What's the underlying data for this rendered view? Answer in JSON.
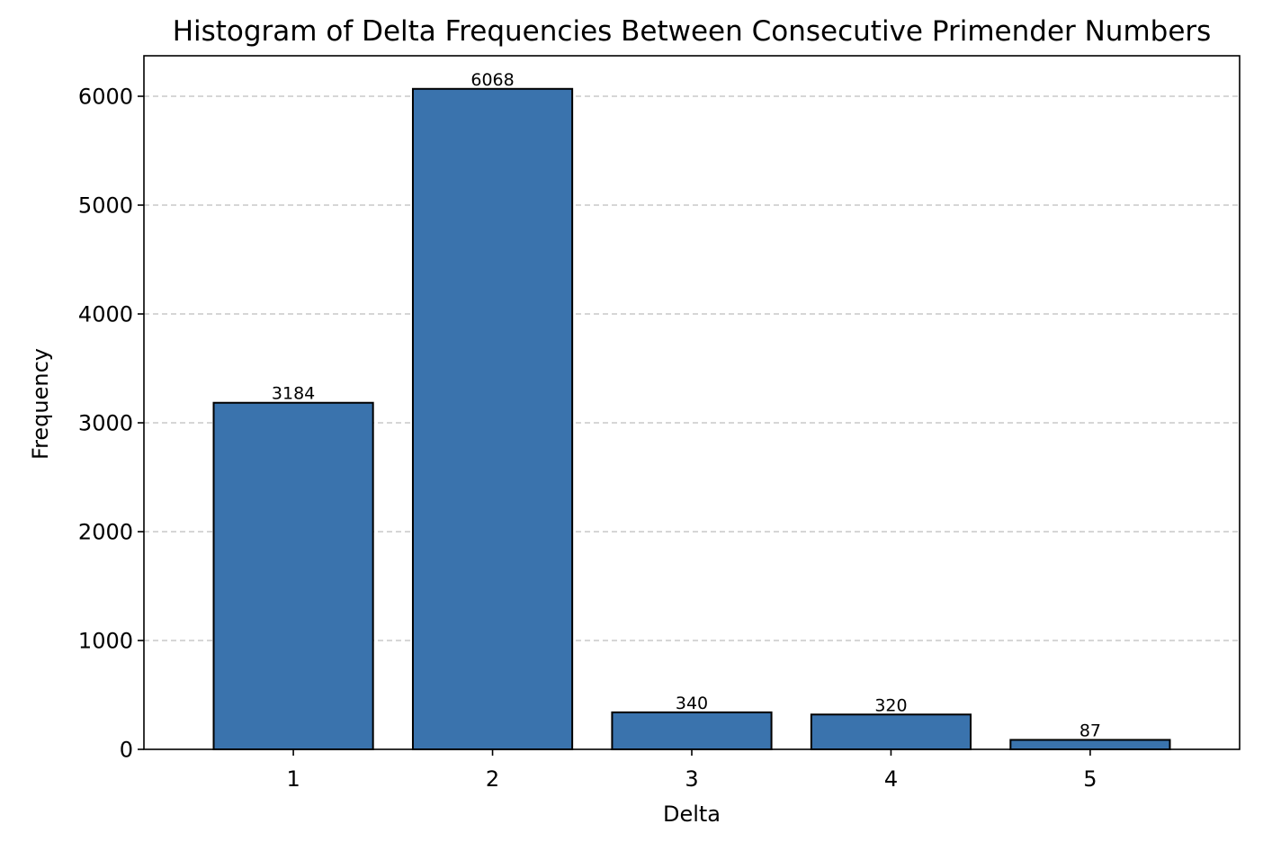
{
  "chart_data": {
    "type": "bar",
    "title": "Histogram of Delta Frequencies Between Consecutive Primender Numbers",
    "xlabel": "Delta",
    "ylabel": "Frequency",
    "categories": [
      "1",
      "2",
      "3",
      "4",
      "5"
    ],
    "values": [
      3184,
      6068,
      340,
      320,
      87
    ],
    "data_labels": [
      "3184",
      "6068",
      "340",
      "320",
      "87"
    ],
    "ylim": [
      0,
      6372
    ],
    "yticks": [
      0,
      1000,
      2000,
      3000,
      4000,
      5000,
      6000
    ],
    "ytick_labels": [
      "0",
      "1000",
      "2000",
      "3000",
      "4000",
      "5000",
      "6000"
    ],
    "grid": "y-dashed",
    "bar_color": "#3a73ad",
    "edge_color": "#000000"
  }
}
